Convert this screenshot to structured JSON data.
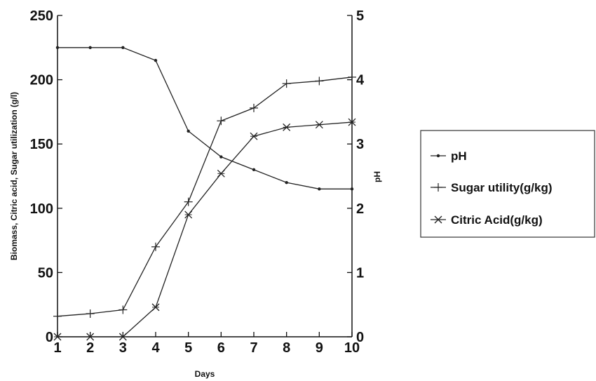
{
  "chart_data": {
    "type": "line",
    "title": "",
    "xlabel": "Days",
    "ylabel_left": "Biomass, Citric acid, Sugar utilization (g/l)",
    "ylabel_right": "pH",
    "x": [
      1,
      2,
      3,
      4,
      5,
      6,
      7,
      8,
      9,
      10
    ],
    "xlim": [
      1,
      10
    ],
    "x_ticks": [
      "1",
      "2",
      "3",
      "4",
      "5",
      "6",
      "7",
      "8",
      "9",
      "10"
    ],
    "ylim_left": [
      0,
      250
    ],
    "y_ticks_left": [
      "0",
      "50",
      "100",
      "150",
      "200",
      "250"
    ],
    "ylim_right": [
      0,
      5
    ],
    "y_ticks_right": [
      "0",
      "1",
      "2",
      "3",
      "4",
      "5"
    ],
    "grid": false,
    "legend_position": "right",
    "series": [
      {
        "name": "pH",
        "axis": "right",
        "marker": "dot",
        "values": [
          4.5,
          4.5,
          4.5,
          4.3,
          3.2,
          2.8,
          2.6,
          2.4,
          2.3,
          2.3
        ]
      },
      {
        "name": "Sugar utility(g/kg)",
        "axis": "left",
        "marker": "plus",
        "values": [
          16,
          18,
          21,
          70,
          105,
          168,
          178,
          197,
          199,
          202
        ]
      },
      {
        "name": "Citric Acid(g/kg)",
        "axis": "left",
        "marker": "cross",
        "values": [
          0,
          0,
          0,
          23,
          95,
          127,
          156,
          163,
          165,
          167
        ]
      }
    ],
    "colors": {
      "line": "#222222",
      "axis": "#111111"
    }
  }
}
